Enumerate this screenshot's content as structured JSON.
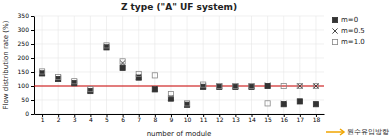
{
  "chart_data": {
    "type": "scatter",
    "title": "Z type (\"A\" UF system)",
    "x_label": "number of module",
    "y_label": "Flow distribution rate (%)",
    "x": [
      1,
      2,
      3,
      4,
      5,
      6,
      7,
      8,
      9,
      10,
      11,
      12,
      13,
      14,
      15,
      16,
      17,
      18
    ],
    "xlim": [
      0.5,
      18.5
    ],
    "xticks": [
      1,
      2,
      3,
      4,
      5,
      6,
      7,
      8,
      9,
      10,
      11,
      12,
      13,
      14,
      15,
      16,
      17,
      18
    ],
    "ylim": [
      0,
      350
    ],
    "yticks": [
      0,
      50,
      100,
      150,
      200,
      250,
      300,
      350
    ],
    "grid": true,
    "legend": "right",
    "series": [
      {
        "name": "m=0",
        "marker": "square",
        "color": "#333333",
        "values": [
          145,
          125,
          110,
          82,
          238,
          165,
          130,
          88,
          55,
          33,
          97,
          97,
          97,
          97,
          100,
          35,
          45,
          35
        ]
      },
      {
        "name": "m=0.5",
        "marker": "x",
        "color": "#333333",
        "values": [
          148,
          128,
          113,
          85,
          241,
          182,
          133,
          91,
          58,
          36,
          100,
          100,
          100,
          100,
          103,
          38,
          100,
          100
        ]
      },
      {
        "name": "m=1.0",
        "marker": "square-open",
        "color": "#888888",
        "values": [
          152,
          132,
          117,
          89,
          245,
          188,
          143,
          138,
          71,
          38,
          105,
          100,
          100,
          100,
          38,
          100,
          100,
          100
        ]
      }
    ],
    "reference_line": {
      "value": 100,
      "color": "#cc0000"
    },
    "annotations": [
      {
        "text": "원수유입방향",
        "color": "#f0a500"
      }
    ]
  }
}
